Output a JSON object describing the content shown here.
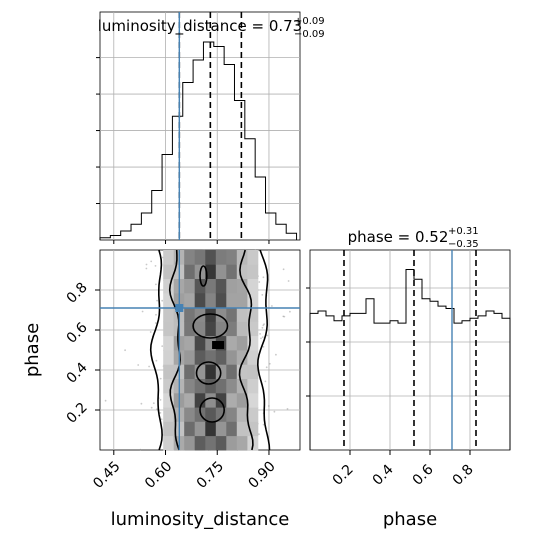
{
  "chart_data": {
    "type": "corner",
    "parameters": [
      "luminosity_distance",
      "phase"
    ],
    "titles": {
      "luminosity_distance": {
        "name": "luminosity_distance",
        "median": "0.73",
        "plus": "+0.09",
        "minus": "−0.09"
      },
      "phase": {
        "name": "phase",
        "median": "0.52",
        "plus": "+0.31",
        "minus": "−0.35"
      }
    },
    "axis_labels": {
      "x_lum": "luminosity_distance",
      "y_phase": "phase",
      "x_phase": "phase"
    },
    "ticks": {
      "luminosity_distance": [
        "0.45",
        "0.60",
        "0.75",
        "0.90"
      ],
      "phase": [
        "0.2",
        "0.4",
        "0.6",
        "0.8"
      ]
    },
    "ranges": {
      "luminosity_distance": [
        0.41,
        0.99
      ],
      "phase": [
        0.0,
        1.0
      ]
    },
    "quantiles": {
      "luminosity_distance": [
        0.64,
        0.73,
        0.82
      ],
      "phase": [
        0.17,
        0.52,
        0.83
      ]
    },
    "truths": {
      "luminosity_distance": 0.64,
      "phase": 0.71
    },
    "truth_color": "#4682b4",
    "grid": true,
    "hist_luminosity_distance": {
      "bin_edges": [
        0.41,
        0.44,
        0.47,
        0.5,
        0.53,
        0.56,
        0.59,
        0.62,
        0.65,
        0.68,
        0.71,
        0.74,
        0.77,
        0.8,
        0.83,
        0.86,
        0.89,
        0.92,
        0.95,
        0.98
      ],
      "counts": [
        1,
        2,
        4,
        7,
        12,
        22,
        38,
        55,
        70,
        80,
        88,
        86,
        78,
        62,
        45,
        28,
        12,
        7,
        3
      ]
    },
    "hist_phase": {
      "bin_edges": [
        0.0,
        0.04,
        0.08,
        0.12,
        0.16,
        0.2,
        0.24,
        0.28,
        0.32,
        0.36,
        0.4,
        0.44,
        0.48,
        0.52,
        0.56,
        0.6,
        0.64,
        0.68,
        0.72,
        0.76,
        0.8,
        0.84,
        0.88,
        0.92,
        0.96,
        1.0
      ],
      "counts": [
        56,
        57,
        55,
        53,
        55,
        56,
        56,
        62,
        52,
        52,
        53,
        52,
        74,
        70,
        62,
        61,
        59,
        58,
        52,
        53,
        54,
        55,
        57,
        56,
        54
      ]
    }
  }
}
